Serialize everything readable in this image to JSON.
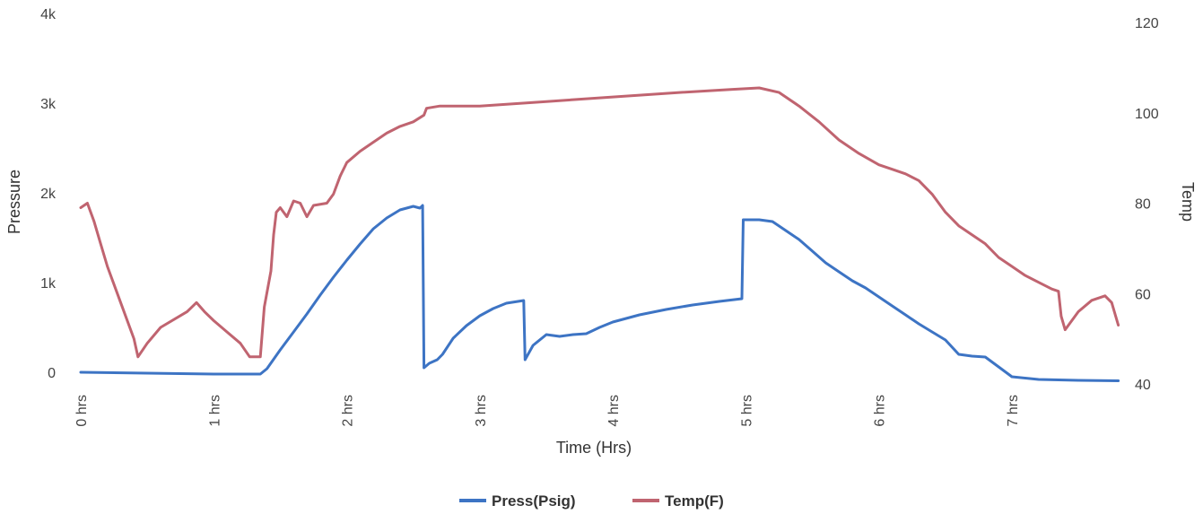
{
  "chart_data": {
    "type": "line",
    "title": "",
    "xlabel": "Time (Hrs)",
    "ylabel_left": "Pressure",
    "ylabel_right": "Temp",
    "xlim": [
      0,
      7.8
    ],
    "ylim_left": [
      0,
      4000
    ],
    "ylim_right": [
      40,
      120
    ],
    "x_ticks": [
      0,
      1,
      2,
      3,
      4,
      5,
      6,
      7
    ],
    "x_tick_labels": [
      "0 hrs",
      "1 hrs",
      "2 hrs",
      "3 hrs",
      "4 hrs",
      "5 hrs",
      "6 hrs",
      "7 hrs"
    ],
    "y_left_ticks": [
      0,
      1000,
      2000,
      3000,
      4000
    ],
    "y_left_tick_labels": [
      "0",
      "1k",
      "2k",
      "3k",
      "4k"
    ],
    "y_right_ticks": [
      40,
      60,
      80,
      100,
      120
    ],
    "y_right_tick_labels": [
      "40",
      "60",
      "80",
      "100",
      "120"
    ],
    "grid": false,
    "legend_position": "bottom",
    "series": [
      {
        "name": "Press(Psig)",
        "axis": "left",
        "color": "#3d74c4",
        "points": [
          [
            0,
            0
          ],
          [
            0.5,
            -10
          ],
          [
            1.0,
            -20
          ],
          [
            1.35,
            -20
          ],
          [
            1.4,
            40
          ],
          [
            1.5,
            250
          ],
          [
            1.6,
            450
          ],
          [
            1.7,
            650
          ],
          [
            1.8,
            860
          ],
          [
            1.9,
            1060
          ],
          [
            2.0,
            1250
          ],
          [
            2.1,
            1430
          ],
          [
            2.2,
            1600
          ],
          [
            2.3,
            1720
          ],
          [
            2.4,
            1810
          ],
          [
            2.5,
            1850
          ],
          [
            2.55,
            1830
          ],
          [
            2.57,
            1860
          ],
          [
            2.58,
            50
          ],
          [
            2.62,
            100
          ],
          [
            2.68,
            140
          ],
          [
            2.72,
            200
          ],
          [
            2.8,
            380
          ],
          [
            2.9,
            520
          ],
          [
            3.0,
            630
          ],
          [
            3.1,
            710
          ],
          [
            3.2,
            770
          ],
          [
            3.33,
            800
          ],
          [
            3.34,
            140
          ],
          [
            3.4,
            300
          ],
          [
            3.5,
            420
          ],
          [
            3.6,
            400
          ],
          [
            3.7,
            420
          ],
          [
            3.8,
            430
          ],
          [
            3.9,
            500
          ],
          [
            4.0,
            560
          ],
          [
            4.2,
            640
          ],
          [
            4.4,
            700
          ],
          [
            4.6,
            750
          ],
          [
            4.8,
            790
          ],
          [
            4.97,
            820
          ],
          [
            4.98,
            1700
          ],
          [
            5.1,
            1700
          ],
          [
            5.2,
            1680
          ],
          [
            5.3,
            1580
          ],
          [
            5.4,
            1480
          ],
          [
            5.5,
            1350
          ],
          [
            5.6,
            1220
          ],
          [
            5.7,
            1120
          ],
          [
            5.8,
            1020
          ],
          [
            5.9,
            940
          ],
          [
            6.0,
            840
          ],
          [
            6.1,
            740
          ],
          [
            6.2,
            640
          ],
          [
            6.3,
            540
          ],
          [
            6.4,
            450
          ],
          [
            6.5,
            360
          ],
          [
            6.6,
            200
          ],
          [
            6.7,
            180
          ],
          [
            6.8,
            170
          ],
          [
            6.9,
            60
          ],
          [
            7.0,
            -50
          ],
          [
            7.2,
            -80
          ],
          [
            7.5,
            -90
          ],
          [
            7.8,
            -95
          ]
        ]
      },
      {
        "name": "Temp(F)",
        "axis": "right",
        "color": "#c06470",
        "points": [
          [
            0,
            79
          ],
          [
            0.05,
            80
          ],
          [
            0.1,
            76
          ],
          [
            0.15,
            71
          ],
          [
            0.2,
            66
          ],
          [
            0.3,
            58
          ],
          [
            0.4,
            50
          ],
          [
            0.43,
            46
          ],
          [
            0.5,
            49
          ],
          [
            0.6,
            52.5
          ],
          [
            0.8,
            56
          ],
          [
            0.87,
            58
          ],
          [
            0.93,
            56
          ],
          [
            1.0,
            54
          ],
          [
            1.1,
            51.5
          ],
          [
            1.2,
            49
          ],
          [
            1.27,
            46
          ],
          [
            1.35,
            46
          ],
          [
            1.38,
            57
          ],
          [
            1.43,
            65
          ],
          [
            1.45,
            73
          ],
          [
            1.47,
            78
          ],
          [
            1.5,
            79
          ],
          [
            1.55,
            77
          ],
          [
            1.6,
            80.5
          ],
          [
            1.65,
            80
          ],
          [
            1.7,
            77
          ],
          [
            1.75,
            79.5
          ],
          [
            1.85,
            80
          ],
          [
            1.9,
            82
          ],
          [
            1.95,
            86
          ],
          [
            2.0,
            89
          ],
          [
            2.1,
            91.5
          ],
          [
            2.2,
            93.5
          ],
          [
            2.3,
            95.5
          ],
          [
            2.4,
            97
          ],
          [
            2.5,
            98
          ],
          [
            2.58,
            99.5
          ],
          [
            2.6,
            101
          ],
          [
            2.7,
            101.5
          ],
          [
            3.0,
            101.5
          ],
          [
            3.5,
            102.5
          ],
          [
            4.0,
            103.5
          ],
          [
            4.5,
            104.5
          ],
          [
            4.9,
            105.2
          ],
          [
            5.1,
            105.5
          ],
          [
            5.25,
            104.5
          ],
          [
            5.4,
            101.5
          ],
          [
            5.55,
            98
          ],
          [
            5.7,
            94
          ],
          [
            5.85,
            91
          ],
          [
            6.0,
            88.5
          ],
          [
            6.1,
            87.5
          ],
          [
            6.2,
            86.5
          ],
          [
            6.3,
            85
          ],
          [
            6.4,
            82
          ],
          [
            6.5,
            78
          ],
          [
            6.6,
            75
          ],
          [
            6.7,
            73
          ],
          [
            6.8,
            71
          ],
          [
            6.9,
            68
          ],
          [
            7.0,
            66
          ],
          [
            7.1,
            64
          ],
          [
            7.2,
            62.5
          ],
          [
            7.3,
            61
          ],
          [
            7.35,
            60.5
          ],
          [
            7.37,
            55
          ],
          [
            7.4,
            52
          ],
          [
            7.5,
            56
          ],
          [
            7.6,
            58.5
          ],
          [
            7.7,
            59.5
          ],
          [
            7.75,
            58
          ],
          [
            7.8,
            53
          ]
        ]
      }
    ]
  }
}
